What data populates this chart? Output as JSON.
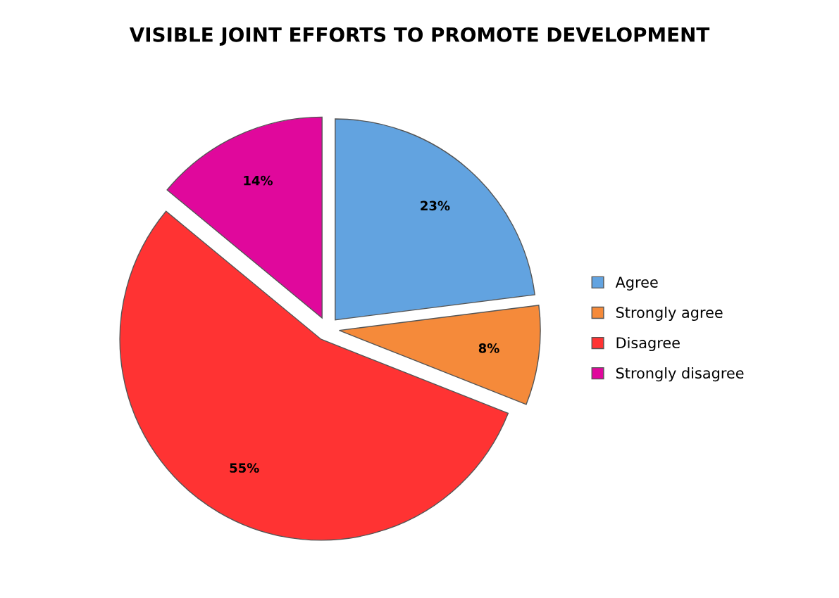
{
  "chart_data": {
    "type": "pie",
    "title": "VISIBLE JOINT EFFORTS TO PROMOTE DEVELOPMENT",
    "categories": [
      "Agree",
      "Strongly agree",
      "Disagree",
      "Strongly disagree"
    ],
    "values": [
      23,
      8,
      55,
      14
    ],
    "colors": [
      "#62a3e0",
      "#f58a3a",
      "#ff3333",
      "#e0089c"
    ],
    "value_labels": [
      "23%",
      "8%",
      "55%",
      "14%"
    ],
    "legend": "right"
  }
}
